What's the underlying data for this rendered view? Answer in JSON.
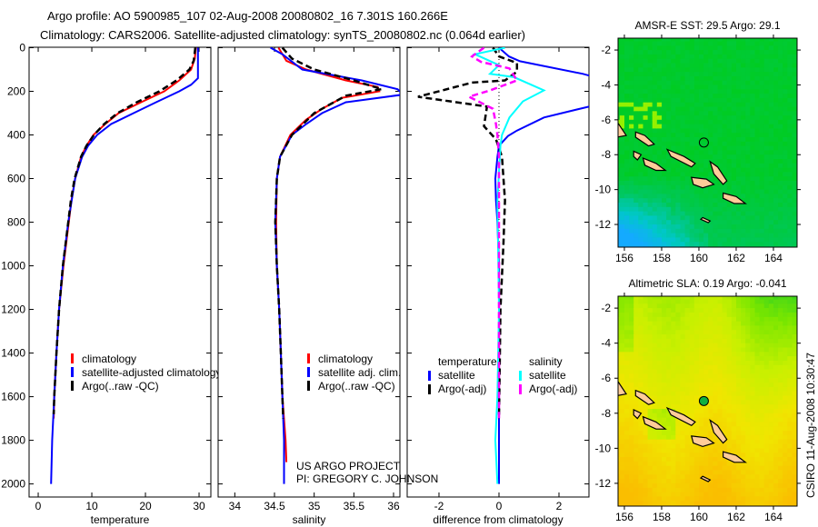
{
  "header": {
    "title_line1": "Argo profile: AO 5900985_107 02-Aug-2008 20080802_16 7.301S 160.266E",
    "title_line2": "Climatology: CARS2006. Satellite-adjusted climatology: synTS_20080802.nc (0.064d earlier)"
  },
  "credit": {
    "line1": "US ARGO PROJECT",
    "line2": "PI: GREGORY C. JOHNSON"
  },
  "timestamp_label": "CSIRO 11-Aug-2008 10:30:47",
  "colors": {
    "climatology": "#ff0000",
    "satellite": "#0000ff",
    "argo": "#000000",
    "sal_satellite": "#00ffff",
    "sal_argo": "#ff00ff",
    "land": "#ffcc99"
  },
  "chart_data": [
    {
      "type": "line",
      "title": "",
      "xlabel": "temperature",
      "ylabel": "",
      "xlim": [
        -1.7,
        32.2
      ],
      "ylim": [
        2060,
        -2
      ],
      "xticks": [
        "0",
        "10",
        "20",
        "30"
      ],
      "xtick_values": [
        0,
        10,
        20,
        30
      ],
      "yticks": [
        "0",
        "200",
        "400",
        "600",
        "800",
        "1000",
        "1200",
        "1400",
        "1600",
        "1800",
        "2000"
      ],
      "ytick_values": [
        0,
        200,
        400,
        600,
        800,
        1000,
        1200,
        1400,
        1600,
        1800,
        2000
      ],
      "legend_position": "bottom-center",
      "series": [
        {
          "name": "climatology",
          "color": "#ff0000",
          "style": "solid",
          "points": [
            [
              0,
              29.4
            ],
            [
              50,
              29.2
            ],
            [
              100,
              28.5
            ],
            [
              150,
              26.3
            ],
            [
              200,
              23.5
            ],
            [
              250,
              19.2
            ],
            [
              300,
              15
            ],
            [
              350,
              12.5
            ],
            [
              400,
              10.3
            ],
            [
              450,
              9
            ],
            [
              500,
              8
            ],
            [
              600,
              6.9
            ],
            [
              700,
              6.2
            ],
            [
              800,
              5.7
            ],
            [
              1000,
              4.7
            ],
            [
              1200,
              3.9
            ],
            [
              1400,
              3.4
            ],
            [
              1600,
              3.0
            ],
            [
              1700,
              2.9
            ]
          ]
        },
        {
          "name": "satellite-adjusted climatology",
          "color": "#0000ff",
          "style": "solid",
          "points": [
            [
              0,
              29.8
            ],
            [
              140,
              29.8
            ],
            [
              170,
              28.5
            ],
            [
              200,
              26.3
            ],
            [
              250,
              22
            ],
            [
              300,
              17.8
            ],
            [
              350,
              13.6
            ],
            [
              400,
              11
            ],
            [
              450,
              9.3
            ],
            [
              500,
              8.2
            ],
            [
              600,
              6.9
            ],
            [
              800,
              5.6
            ],
            [
              1000,
              4.6
            ],
            [
              1200,
              3.9
            ],
            [
              1400,
              3.4
            ],
            [
              1600,
              3.0
            ],
            [
              1800,
              2.6
            ],
            [
              2000,
              2.4
            ]
          ]
        },
        {
          "name": "Argo(..raw -QC)",
          "color": "#000000",
          "style": "dashed",
          "points": [
            [
              0,
              29.3
            ],
            [
              60,
              29
            ],
            [
              100,
              28.2
            ],
            [
              150,
              25.8
            ],
            [
              200,
              22.6
            ],
            [
              250,
              18.4
            ],
            [
              300,
              14.8
            ],
            [
              350,
              12.3
            ],
            [
              400,
              10.4
            ],
            [
              450,
              9
            ],
            [
              500,
              8
            ],
            [
              600,
              6.8
            ],
            [
              700,
              6.1
            ],
            [
              800,
              5.6
            ],
            [
              1000,
              4.6
            ],
            [
              1200,
              3.9
            ],
            [
              1400,
              3.4
            ],
            [
              1600,
              3.0
            ],
            [
              1680,
              2.9
            ]
          ]
        }
      ]
    },
    {
      "type": "line",
      "title": "",
      "xlabel": "salinity",
      "ylabel": "",
      "xlim": [
        33.79,
        36.08
      ],
      "ylim": [
        2060,
        -2
      ],
      "xticks": [
        "34",
        "34.5",
        "35",
        "35.5",
        "36"
      ],
      "xtick_values": [
        34,
        34.5,
        35,
        35.5,
        36
      ],
      "legend_position": "bottom-right",
      "series": [
        {
          "name": "climatology",
          "color": "#ff0000",
          "style": "solid",
          "points": [
            [
              0,
              34.55
            ],
            [
              60,
              34.65
            ],
            [
              100,
              34.9
            ],
            [
              150,
              35.4
            ],
            [
              180,
              35.8
            ],
            [
              200,
              35.82
            ],
            [
              230,
              35.35
            ],
            [
              280,
              35.1
            ],
            [
              330,
              34.9
            ],
            [
              400,
              34.7
            ],
            [
              500,
              34.57
            ],
            [
              600,
              34.53
            ],
            [
              800,
              34.52
            ],
            [
              1000,
              34.53
            ],
            [
              1200,
              34.56
            ],
            [
              1400,
              34.58
            ],
            [
              1600,
              34.6
            ],
            [
              1800,
              34.64
            ],
            [
              1900,
              34.65
            ]
          ]
        },
        {
          "name": "satellite adj. clim.",
          "color": "#0000ff",
          "style": "solid",
          "points": [
            [
              0,
              34.45
            ],
            [
              30,
              34.6
            ],
            [
              100,
              34.85
            ],
            [
              150,
              35.6
            ],
            [
              190,
              36.05
            ],
            [
              215,
              36.12
            ],
            [
              250,
              35.4
            ],
            [
              300,
              35.1
            ],
            [
              350,
              34.9
            ],
            [
              400,
              34.72
            ],
            [
              500,
              34.57
            ],
            [
              600,
              34.53
            ],
            [
              800,
              34.51
            ],
            [
              1000,
              34.53
            ],
            [
              1200,
              34.56
            ],
            [
              1400,
              34.58
            ],
            [
              1600,
              34.6
            ],
            [
              1800,
              34.62
            ],
            [
              2000,
              34.62
            ]
          ]
        },
        {
          "name": "Argo(..raw -QC)",
          "color": "#000000",
          "style": "dashed",
          "points": [
            [
              0,
              34.6
            ],
            [
              50,
              34.72
            ],
            [
              100,
              35.0
            ],
            [
              150,
              35.5
            ],
            [
              190,
              35.85
            ],
            [
              220,
              35.4
            ],
            [
              260,
              35.2
            ],
            [
              300,
              35.0
            ],
            [
              400,
              34.72
            ],
            [
              500,
              34.57
            ],
            [
              600,
              34.53
            ],
            [
              800,
              34.51
            ],
            [
              1000,
              34.53
            ],
            [
              1200,
              34.56
            ],
            [
              1400,
              34.58
            ],
            [
              1600,
              34.6
            ],
            [
              1700,
              34.61
            ]
          ]
        }
      ]
    },
    {
      "type": "line",
      "title": "",
      "xlabel": "difference from climatology",
      "ylabel": "",
      "xlim": [
        -3.06,
        3.0
      ],
      "ylim": [
        2060,
        -2
      ],
      "xticks": [
        "-2",
        "0",
        "2"
      ],
      "xtick_values": [
        -2,
        0,
        2
      ],
      "legend_position": "bottom-center",
      "legend_headers": {
        "temperature": "temperature",
        "salinity": "salinity"
      },
      "series": [
        {
          "name": "satellite",
          "group": "temperature",
          "color": "#0000ff",
          "style": "solid",
          "points": [
            [
              0,
              0
            ],
            [
              40,
              0.33
            ],
            [
              62,
              0.7
            ],
            [
              120,
              2.8
            ],
            [
              150,
              3.6
            ],
            [
              230,
              3.6
            ],
            [
              270,
              3.0
            ],
            [
              320,
              1.5
            ],
            [
              380,
              0.6
            ],
            [
              405,
              0.3
            ],
            [
              450,
              0
            ],
            [
              500,
              -0.05
            ],
            [
              600,
              -0.12
            ],
            [
              700,
              -0.1
            ],
            [
              800,
              -0.05
            ],
            [
              1000,
              0
            ],
            [
              1500,
              0
            ],
            [
              2000,
              0
            ]
          ]
        },
        {
          "name": "Argo(-adj)",
          "group": "temperature",
          "color": "#000000",
          "style": "dashed",
          "points": [
            [
              0,
              -0.2
            ],
            [
              40,
              0
            ],
            [
              70,
              0.6
            ],
            [
              110,
              0.6
            ],
            [
              150,
              0.2
            ],
            [
              160,
              -0.9
            ],
            [
              225,
              -2.7
            ],
            [
              270,
              -0.4
            ],
            [
              360,
              -0.5
            ],
            [
              420,
              -0.1
            ],
            [
              500,
              0.1
            ],
            [
              700,
              0.2
            ],
            [
              900,
              0.15
            ],
            [
              1200,
              0.05
            ],
            [
              1500,
              0.02
            ],
            [
              1700,
              0
            ]
          ]
        },
        {
          "name": "satellite",
          "group": "salinity",
          "color": "#00ffff",
          "style": "solid",
          "points": [
            [
              0,
              0.2
            ],
            [
              30,
              -0.8
            ],
            [
              80,
              0.0
            ],
            [
              120,
              -0.3
            ],
            [
              135,
              0.5
            ],
            [
              196,
              1.5
            ],
            [
              246,
              0.8
            ],
            [
              320,
              0.35
            ],
            [
              400,
              0.1
            ],
            [
              450,
              0.05
            ],
            [
              700,
              -0.05
            ],
            [
              1200,
              0
            ],
            [
              1600,
              -0.05
            ],
            [
              1800,
              -0.12
            ],
            [
              2000,
              -0.05
            ]
          ]
        },
        {
          "name": "Argo(-adj)",
          "group": "salinity",
          "color": "#ff00ff",
          "style": "dashed",
          "points": [
            [
              0,
              -0.5
            ],
            [
              40,
              -0.9
            ],
            [
              65,
              -0.6
            ],
            [
              95,
              0.35
            ],
            [
              150,
              0.6
            ],
            [
              196,
              -0.3
            ],
            [
              225,
              -1.0
            ],
            [
              280,
              -0.2
            ],
            [
              350,
              -0.1
            ],
            [
              400,
              -0.05
            ],
            [
              500,
              0
            ],
            [
              800,
              0
            ],
            [
              1200,
              0
            ],
            [
              1700,
              0
            ]
          ]
        }
      ]
    },
    {
      "type": "heatmap",
      "title": "AMSR-E SST: 29.5 Argo: 29.1",
      "xlim": [
        155.66,
        165.27
      ],
      "ylim": [
        -13.3,
        -1.32
      ],
      "xticks": [
        "156",
        "158",
        "160",
        "162",
        "164"
      ],
      "xtick_values": [
        156,
        158,
        160,
        162,
        164
      ],
      "yticks": [
        "-2",
        "-4",
        "-6",
        "-8",
        "-10",
        "-12"
      ],
      "ytick_values": [
        -2,
        -4,
        -6,
        -8,
        -10,
        -12
      ],
      "field": "sst",
      "argo_position": [
        160.266,
        -7.301
      ],
      "argo_marker": "open-circle"
    },
    {
      "type": "heatmap",
      "title": "Altimetric SLA: 0.19 Argo: -0.041",
      "xlim": [
        155.66,
        165.27
      ],
      "ylim": [
        -13.3,
        -1.32
      ],
      "xticks": [
        "156",
        "158",
        "160",
        "162",
        "164"
      ],
      "xtick_values": [
        156,
        158,
        160,
        162,
        164
      ],
      "yticks": [
        "-2",
        "-4",
        "-6",
        "-8",
        "-10",
        "-12"
      ],
      "ytick_values": [
        -2,
        -4,
        -6,
        -8,
        -10,
        -12
      ],
      "field": "sla",
      "argo_position": [
        160.266,
        -7.301
      ],
      "argo_marker": "filled-circle"
    }
  ],
  "islands": [
    [
      [
        155.0,
        -5.5
      ],
      [
        155.6,
        -6.1
      ],
      [
        156.1,
        -6.9
      ],
      [
        155.6,
        -7.0
      ],
      [
        155.0,
        -6.7
      ]
    ],
    [
      [
        156.6,
        -6.7
      ],
      [
        157.1,
        -6.9
      ],
      [
        157.6,
        -7.4
      ],
      [
        157.3,
        -7.5
      ],
      [
        156.6,
        -7.0
      ]
    ],
    [
      [
        158.3,
        -7.7
      ],
      [
        159.2,
        -8.1
      ],
      [
        159.8,
        -8.5
      ],
      [
        159.6,
        -8.7
      ],
      [
        158.5,
        -8.1
      ]
    ],
    [
      [
        157.0,
        -8.2
      ],
      [
        157.7,
        -8.5
      ],
      [
        158.2,
        -8.9
      ],
      [
        157.7,
        -8.9
      ],
      [
        157.1,
        -8.6
      ]
    ],
    [
      [
        156.5,
        -7.8
      ],
      [
        156.9,
        -8.0
      ],
      [
        156.7,
        -8.3
      ],
      [
        156.5,
        -8.1
      ]
    ],
    [
      [
        159.6,
        -9.3
      ],
      [
        160.4,
        -9.4
      ],
      [
        160.8,
        -9.7
      ],
      [
        160.2,
        -9.9
      ],
      [
        159.7,
        -9.7
      ]
    ],
    [
      [
        160.6,
        -8.4
      ],
      [
        161.0,
        -8.7
      ],
      [
        161.5,
        -9.5
      ],
      [
        161.3,
        -9.7
      ],
      [
        160.8,
        -9.1
      ]
    ],
    [
      [
        161.3,
        -10.2
      ],
      [
        162.0,
        -10.4
      ],
      [
        162.5,
        -10.8
      ],
      [
        161.9,
        -10.8
      ],
      [
        161.3,
        -10.5
      ]
    ],
    [
      [
        160.2,
        -11.6
      ],
      [
        160.6,
        -11.8
      ],
      [
        160.5,
        -11.9
      ],
      [
        160.1,
        -11.7
      ]
    ]
  ]
}
